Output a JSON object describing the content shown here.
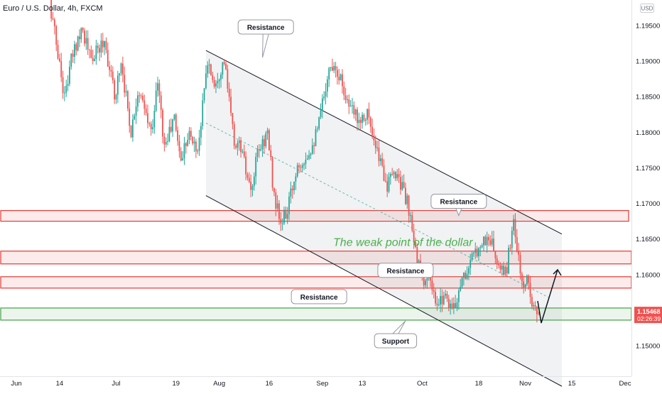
{
  "chart_data": {
    "type": "candlestick",
    "title": "Euro / U.S. Dollar, 4h, FXCM",
    "currency": "USD",
    "price_scale": {
      "min": 1.1445,
      "max": 1.2004
    },
    "y_ticks": [
      1.195,
      1.19,
      1.185,
      1.18,
      1.175,
      1.17,
      1.165,
      1.16,
      1.155,
      1.15
    ],
    "y_tick_labels": [
      "1.19500",
      "1.19000",
      "1.18500",
      "1.18000",
      "1.17500",
      "1.17000",
      "1.16500",
      "1.16000",
      "1.15500",
      "1.15000"
    ],
    "x_labels": [
      {
        "label": "Jun",
        "date": "2021-06-01"
      },
      {
        "label": "14",
        "date": "2021-06-14"
      },
      {
        "label": "Jul",
        "date": "2021-07-01"
      },
      {
        "label": "19",
        "date": "2021-07-19"
      },
      {
        "label": "Aug",
        "date": "2021-08-01"
      },
      {
        "label": "16",
        "date": "2021-08-16"
      },
      {
        "label": "Sep",
        "date": "2021-09-01"
      },
      {
        "label": "13",
        "date": "2021-09-13"
      },
      {
        "label": "Oct",
        "date": "2021-10-01"
      },
      {
        "label": "18",
        "date": "2021-10-18"
      },
      {
        "label": "Nov",
        "date": "2021-11-01"
      },
      {
        "label": "15",
        "date": "2021-11-15"
      },
      {
        "label": "Dec",
        "date": "2021-12-01"
      }
    ],
    "last_price": {
      "value": 1.15468,
      "label": "1.15468",
      "countdown": "02:26:39"
    },
    "price_path": [
      [
        "2021-06-11",
        1.2
      ],
      [
        "2021-06-16",
        1.185
      ],
      [
        "2021-06-18",
        1.19
      ],
      [
        "2021-06-21",
        1.195
      ],
      [
        "2021-06-24",
        1.19
      ],
      [
        "2021-06-28",
        1.193
      ],
      [
        "2021-07-01",
        1.185
      ],
      [
        "2021-07-03",
        1.19
      ],
      [
        "2021-07-06",
        1.18
      ],
      [
        "2021-07-08",
        1.186
      ],
      [
        "2021-07-12",
        1.18
      ],
      [
        "2021-07-14",
        1.187
      ],
      [
        "2021-07-16",
        1.178
      ],
      [
        "2021-07-19",
        1.182
      ],
      [
        "2021-07-21",
        1.176
      ],
      [
        "2021-07-23",
        1.18
      ],
      [
        "2021-07-26",
        1.1775
      ],
      [
        "2021-07-29",
        1.19
      ],
      [
        "2021-07-31",
        1.187
      ],
      [
        "2021-08-03",
        1.19
      ],
      [
        "2021-08-06",
        1.1785
      ],
      [
        "2021-08-08",
        1.178
      ],
      [
        "2021-08-11",
        1.171
      ],
      [
        "2021-08-13",
        1.177
      ],
      [
        "2021-08-16",
        1.18
      ],
      [
        "2021-08-18",
        1.171
      ],
      [
        "2021-08-20",
        1.167
      ],
      [
        "2021-08-22",
        1.169
      ],
      [
        "2021-08-25",
        1.1755
      ],
      [
        "2021-08-28",
        1.177
      ],
      [
        "2021-08-31",
        1.18
      ],
      [
        "2021-09-03",
        1.188
      ],
      [
        "2021-09-05",
        1.19
      ],
      [
        "2021-09-07",
        1.1875
      ],
      [
        "2021-09-10",
        1.183
      ],
      [
        "2021-09-13",
        1.182
      ],
      [
        "2021-09-15",
        1.183
      ],
      [
        "2021-09-17",
        1.178
      ],
      [
        "2021-09-19",
        1.176
      ],
      [
        "2021-09-21",
        1.1725
      ],
      [
        "2021-09-24",
        1.1745
      ],
      [
        "2021-09-27",
        1.17
      ],
      [
        "2021-09-29",
        1.1645
      ],
      [
        "2021-10-01",
        1.16
      ],
      [
        "2021-10-04",
        1.1585
      ],
      [
        "2021-10-06",
        1.155
      ],
      [
        "2021-10-08",
        1.1575
      ],
      [
        "2021-10-11",
        1.155
      ],
      [
        "2021-10-13",
        1.159
      ],
      [
        "2021-10-15",
        1.1605
      ],
      [
        "2021-10-19",
        1.1645
      ],
      [
        "2021-10-22",
        1.165
      ],
      [
        "2021-10-25",
        1.16
      ],
      [
        "2021-10-27",
        1.161
      ],
      [
        "2021-10-29",
        1.168
      ],
      [
        "2021-10-30",
        1.1635
      ],
      [
        "2021-11-01",
        1.1575
      ],
      [
        "2021-11-02",
        1.16
      ],
      [
        "2021-11-04",
        1.1555
      ],
      [
        "2021-11-05",
        1.1547
      ]
    ],
    "horizontal_zones": [
      {
        "name": "upper-resistance-zone",
        "from": 1.1675,
        "to": 1.169,
        "start": "2021-06-01",
        "end": "2021-12-01",
        "color": "#e53935"
      },
      {
        "name": "resistance-zone",
        "from": 1.1615,
        "to": 1.1633,
        "start": "2021-06-01",
        "end": "2021-12-01",
        "color": "#e53935"
      },
      {
        "name": "resistance-zone-2",
        "from": 1.1581,
        "to": 1.1597,
        "start": "2021-06-01",
        "end": "2021-12-01",
        "color": "#e53935"
      },
      {
        "name": "support-zone",
        "from": 1.1536,
        "to": 1.1553,
        "start": "2021-06-01",
        "end": "2021-12-01",
        "color": "#43a047"
      }
    ],
    "channel": {
      "upper": [
        [
          "2021-07-28",
          1.1915
        ],
        [
          "2021-11-12",
          1.1657
        ]
      ],
      "lower": [
        [
          "2021-07-28",
          1.1711
        ],
        [
          "2021-11-12",
          1.1443
        ]
      ],
      "mid": [
        [
          "2021-07-28",
          1.1813
        ],
        [
          "2021-11-08",
          1.1568
        ]
      ]
    },
    "projection_arrow": [
      [
        "2021-11-06",
        1.154
      ],
      [
        "2021-11-09",
        1.1602
      ]
    ],
    "annotations": [
      {
        "text": "Resistance",
        "date": "2021-08-15",
        "price": 1.1948,
        "tail": [
          "2021-08-14",
          1.1905
        ]
      },
      {
        "text": "Resistance",
        "date": "2021-10-12",
        "price": 1.1703,
        "tail": [
          "2021-10-12",
          1.1683
        ]
      },
      {
        "text": "Resistance",
        "date": "2021-09-26",
        "price": 1.1606,
        "tail": null
      },
      {
        "text": "Resistance",
        "date": "2021-08-31",
        "price": 1.1569,
        "tail": null
      },
      {
        "text": "Support",
        "date": "2021-09-23",
        "price": 1.1507,
        "tail": [
          "2021-09-26",
          1.1535
        ]
      },
      {
        "text": "The weak point of the dollar",
        "date": "2021-10-02",
        "price": 1.1645,
        "style": "callout"
      }
    ],
    "colors": {
      "up": "#26a69a",
      "down": "#ef5350",
      "resistance": "#e53935",
      "support": "#43a047",
      "callout_text": "#4caf50",
      "price_tag": "#ef5350"
    }
  }
}
